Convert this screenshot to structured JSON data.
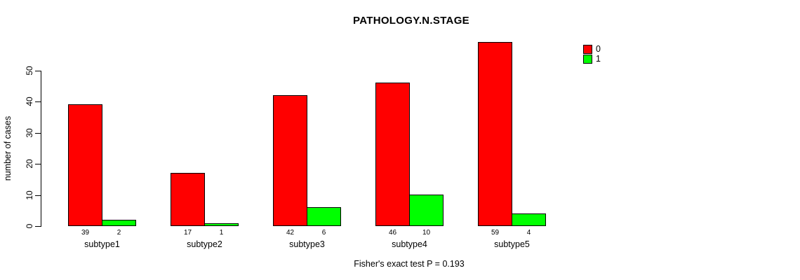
{
  "chart": {
    "title": "PATHOLOGY.N.STAGE",
    "ylabel": "number of cases",
    "annotation": "Fisher's exact test P = 0.193"
  },
  "legend": {
    "items": [
      {
        "label": "0",
        "color": "#FF0000"
      },
      {
        "label": "1",
        "color": "#00FF00"
      }
    ]
  },
  "chart_data": {
    "type": "bar",
    "title": "PATHOLOGY.N.STAGE",
    "xlabel": "",
    "ylabel": "number of cases",
    "categories": [
      "subtype1",
      "subtype2",
      "subtype3",
      "subtype4",
      "subtype5"
    ],
    "series": [
      {
        "name": "0",
        "color": "#FF0000",
        "values": [
          39,
          17,
          42,
          46,
          59
        ]
      },
      {
        "name": "1",
        "color": "#00FF00",
        "values": [
          2,
          1,
          6,
          10,
          4
        ]
      }
    ],
    "bar_value_labels": [
      [
        "39",
        "2"
      ],
      [
        "17",
        "1"
      ],
      [
        "42",
        "6"
      ],
      [
        "46",
        "10"
      ],
      [
        "59",
        "4"
      ]
    ],
    "yticks": [
      0,
      10,
      20,
      30,
      40,
      50
    ],
    "ylim": [
      0,
      59
    ],
    "grid": false,
    "legend_position": "top-right",
    "legend_entries": [
      "0",
      "1"
    ],
    "annotation": "Fisher's exact test P = 0.193"
  }
}
